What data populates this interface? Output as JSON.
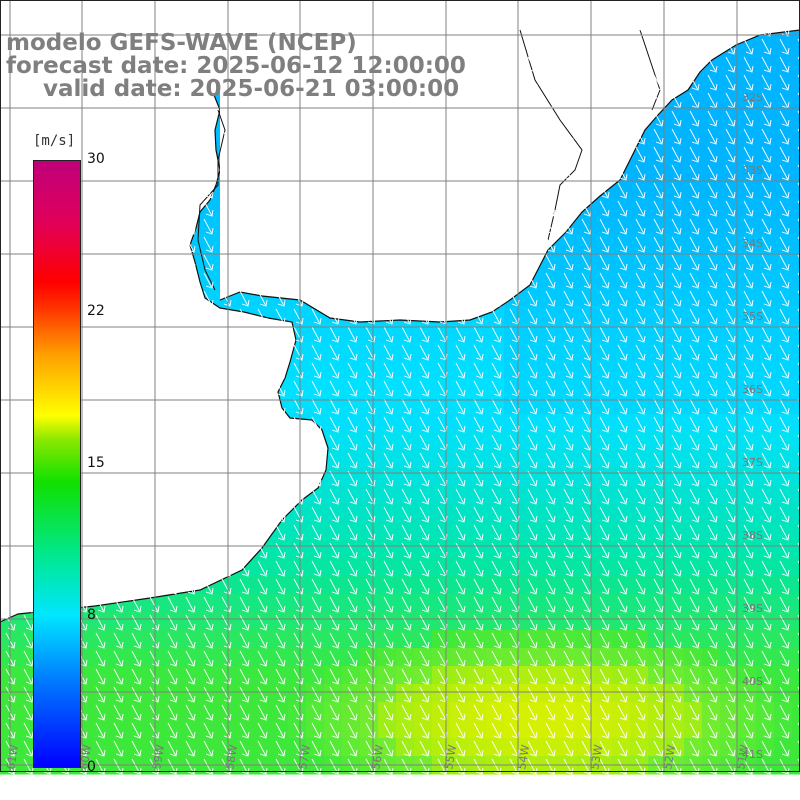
{
  "title": {
    "line1": "modelo GEFS-WAVE (NCEP)",
    "line2": "forecast date: 2025-06-12 12:00:00",
    "line3": "valid date: 2025-06-21 03:00:00"
  },
  "colorbar": {
    "units": "[m/s]",
    "tick_labels": [
      "30",
      "22",
      "15",
      "8",
      "0"
    ],
    "range": [
      0,
      30
    ],
    "colors": [
      "#0000ff",
      "#0078ff",
      "#00e6ff",
      "#00e89a",
      "#10e000",
      "#8ae800",
      "#ffff00",
      "#ffa000",
      "#ff3000",
      "#ff0000",
      "#e0005a",
      "#c0007a"
    ]
  },
  "map": {
    "lat_labels": [
      "32S",
      "33S",
      "34S",
      "35S",
      "36S",
      "37S",
      "38S",
      "39S",
      "40S",
      "41S"
    ],
    "lon_labels": [
      "61W",
      "60W",
      "59W",
      "58W",
      "57W",
      "56W",
      "55W",
      "54W",
      "53W",
      "52W",
      "51W"
    ],
    "field": "wind speed with direction arrows",
    "arrow_direction": "south-southeast",
    "land_color": "#ffffff",
    "grid_color": "#808080"
  }
}
